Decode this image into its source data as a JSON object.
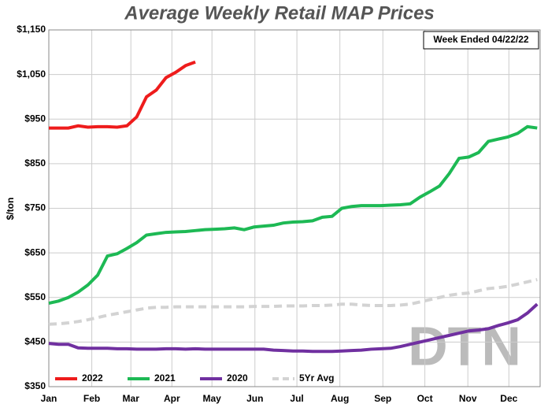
{
  "chart_data": {
    "type": "line",
    "title": "Average Weekly Retail MAP Prices",
    "annotation": "Week Ended 04/22/22",
    "watermark": "DTN",
    "y_label": "$/ton",
    "xlim": [
      1,
      51.3
    ],
    "xticks": [
      {
        "value": 1,
        "label": "Jan"
      },
      {
        "value": 5.4,
        "label": "Feb"
      },
      {
        "value": 9.4,
        "label": "Mar"
      },
      {
        "value": 13.6,
        "label": "Apr"
      },
      {
        "value": 17.7,
        "label": "May"
      },
      {
        "value": 22.1,
        "label": "Jun"
      },
      {
        "value": 26.4,
        "label": "Jul"
      },
      {
        "value": 30.8,
        "label": "Aug"
      },
      {
        "value": 35.2,
        "label": "Sep"
      },
      {
        "value": 39.5,
        "label": "Oct"
      },
      {
        "value": 43.9,
        "label": "Nov"
      },
      {
        "value": 48.1,
        "label": "Dec"
      }
    ],
    "ylim": [
      350,
      1150
    ],
    "yticks": [
      {
        "value": 350,
        "label": "$350"
      },
      {
        "value": 450,
        "label": "$450"
      },
      {
        "value": 550,
        "label": "$550"
      },
      {
        "value": 650,
        "label": "$650"
      },
      {
        "value": 750,
        "label": "$750"
      },
      {
        "value": 850,
        "label": "$850"
      },
      {
        "value": 950,
        "label": "$950"
      },
      {
        "value": 1050,
        "label": "$1,050"
      },
      {
        "value": 1150,
        "label": "$1,150"
      }
    ],
    "grid": true,
    "legend": "bottom-left",
    "x": [
      1,
      2,
      3,
      4,
      5,
      6,
      7,
      8,
      9,
      10,
      11,
      12,
      13,
      14,
      15,
      16,
      17,
      18,
      19,
      20,
      21,
      22,
      23,
      24,
      25,
      26,
      27,
      28,
      29,
      30,
      31,
      32,
      33,
      34,
      35,
      36,
      37,
      38,
      39,
      40,
      41,
      42,
      43,
      44,
      45,
      46,
      47,
      48,
      49,
      50,
      51
    ],
    "series": [
      {
        "name": "2022",
        "color": "#ee1c1c",
        "dashed": false,
        "values": [
          930,
          930,
          930,
          935,
          932,
          933,
          933,
          932,
          935,
          955,
          1000,
          1015,
          1043,
          1055,
          1070,
          1078,
          null,
          null,
          null,
          null,
          null,
          null,
          null,
          null,
          null,
          null,
          null,
          null,
          null,
          null,
          null,
          null,
          null,
          null,
          null,
          null,
          null,
          null,
          null,
          null,
          null,
          null,
          null,
          null,
          null,
          null,
          null,
          null,
          null,
          null,
          null
        ]
      },
      {
        "name": "2021",
        "color": "#1db954",
        "dashed": false,
        "values": [
          537,
          542,
          550,
          562,
          578,
          600,
          643,
          648,
          660,
          673,
          690,
          693,
          696,
          697,
          698,
          700,
          702,
          703,
          704,
          706,
          702,
          708,
          710,
          712,
          717,
          719,
          720,
          722,
          730,
          732,
          750,
          754,
          756,
          756,
          756,
          757,
          758,
          760,
          775,
          787,
          800,
          828,
          862,
          865,
          875,
          900,
          905,
          910,
          918,
          933,
          930
        ]
      },
      {
        "name": "2020",
        "color": "#7030a0",
        "dashed": false,
        "values": [
          447,
          445,
          445,
          437,
          436,
          436,
          436,
          435,
          435,
          434,
          434,
          434,
          435,
          435,
          434,
          435,
          434,
          434,
          434,
          434,
          434,
          434,
          434,
          432,
          431,
          430,
          430,
          429,
          429,
          429,
          430,
          431,
          432,
          434,
          435,
          436,
          440,
          445,
          450,
          455,
          460,
          465,
          470,
          475,
          477,
          480,
          487,
          493,
          500,
          515,
          535
        ]
      },
      {
        "name": "5Yr Avg",
        "color": "#d3d3d3",
        "dashed": true,
        "values": [
          490,
          491,
          493,
          496,
          500,
          505,
          510,
          514,
          518,
          522,
          526,
          528,
          528,
          529,
          529,
          529,
          529,
          529,
          529,
          529,
          529,
          530,
          530,
          530,
          531,
          531,
          531,
          532,
          532,
          533,
          535,
          535,
          533,
          532,
          532,
          532,
          533,
          535,
          540,
          545,
          550,
          555,
          558,
          560,
          565,
          570,
          572,
          575,
          580,
          585,
          590
        ]
      }
    ]
  }
}
